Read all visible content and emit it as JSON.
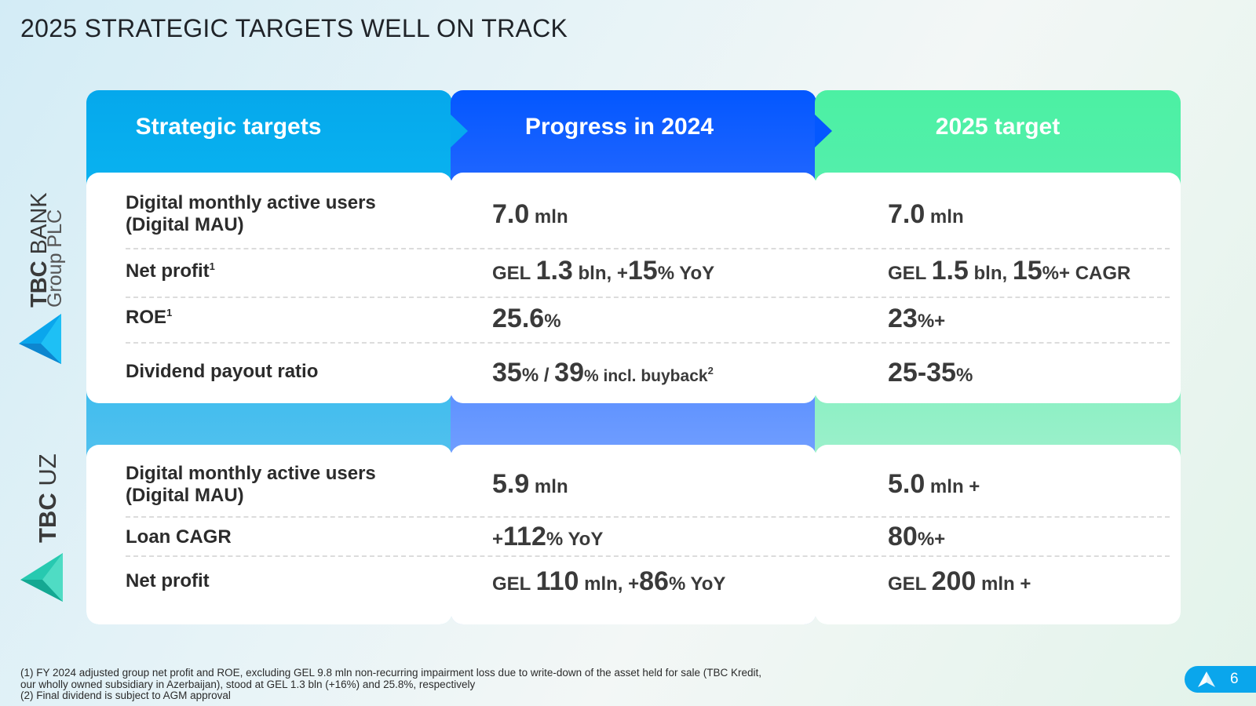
{
  "title": "2025 STRATEGIC TARGETS WELL ON TRACK",
  "columns": {
    "strategic": "Strategic targets",
    "progress": "Progress in 2024",
    "target": "2025 target"
  },
  "colors": {
    "col1": "#06aaee",
    "col2": "#0458ff",
    "col3": "#4cf0a3"
  },
  "tbc_bank": {
    "brand_bold": "TBC",
    "brand_light": "BANK",
    "brand_sub": "Group PLC",
    "rows": [
      {
        "label": "Digital monthly active users (Digital MAU)",
        "progress": {
          "n": "7.0",
          "u": " mln"
        },
        "target": {
          "n": "7.0",
          "u": " mln"
        }
      },
      {
        "label": "Net profit",
        "sup": "1",
        "progress": {
          "p1": "GEL ",
          "n1": "1.3",
          "p2": " bln, +",
          "n2": "15",
          "p3": "% YoY"
        },
        "target": {
          "p1": "GEL ",
          "n1": "1.5",
          "p2": " bln, ",
          "n2": "15",
          "p3": "%+ CAGR"
        }
      },
      {
        "label": "ROE",
        "sup": "1",
        "progress": {
          "n": "25.6",
          "u": "%"
        },
        "target": {
          "n": "23",
          "u": "%+"
        }
      },
      {
        "label": "Dividend payout ratio",
        "progress": {
          "n1": "35",
          "p2": "% / ",
          "n2": "39",
          "p3": "% incl. buyback",
          "sup": "2"
        },
        "target": {
          "n": "25-35",
          "u": "%"
        }
      }
    ]
  },
  "tbc_uz": {
    "brand_bold": "TBC",
    "brand_light": "UZ",
    "rows": [
      {
        "label": "Digital monthly active users (Digital MAU)",
        "progress": {
          "n": "5.9",
          "u": " mln"
        },
        "target": {
          "n": "5.0",
          "u": " mln +"
        }
      },
      {
        "label": "Loan CAGR",
        "progress": {
          "p1": "+",
          "n": "112",
          "u": "% YoY"
        },
        "target": {
          "n": "80",
          "u": "%+"
        }
      },
      {
        "label": "Net profit",
        "progress": {
          "p1": "GEL ",
          "n1": "110",
          "p2": " mln, +",
          "n2": "86",
          "p3": "% YoY"
        },
        "target": {
          "p1": "GEL ",
          "n": "200",
          "u": " mln +"
        }
      }
    ]
  },
  "footnotes": [
    "(1) FY 2024 adjusted group net profit and ROE, excluding GEL 9.8 mln non-recurring impairment loss due to write-down of the asset held for sale (TBC Kredit, our wholly owned subsidiary in Azerbaijan), stood at GEL 1.3 bln (+16%) and 25.8%, respectively",
    "(2) Final dividend is subject to AGM approval"
  ],
  "page_number": "6"
}
